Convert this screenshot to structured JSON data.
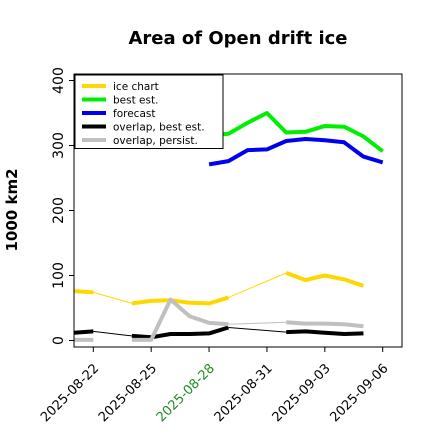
{
  "chart_data": {
    "type": "line",
    "title": "Area of Open drift ice",
    "ylabel": "1000 km2",
    "xlabel": "",
    "ylim": [
      -10,
      410
    ],
    "yticks": [
      0,
      100,
      200,
      300,
      400
    ],
    "x_tick_labels": [
      {
        "date": "2025-08-22",
        "color": "#000000"
      },
      {
        "date": "2025-08-25",
        "color": "#000000"
      },
      {
        "date": "2025-08-28",
        "color": "#228b22"
      },
      {
        "date": "2025-08-31",
        "color": "#000000"
      },
      {
        "date": "2025-09-03",
        "color": "#000000"
      },
      {
        "date": "2025-09-06",
        "color": "#000000"
      }
    ],
    "xlim": [
      "2025-08-21",
      "2025-09-07"
    ],
    "legend": {
      "placement": "top-left",
      "entries": [
        {
          "label": "ice chart",
          "color": "#ffd700"
        },
        {
          "label": "best est.",
          "color": "#00ee00"
        },
        {
          "label": "forecast",
          "color": "#0000ee"
        },
        {
          "label": "overlap, best est.",
          "color": "#000000"
        },
        {
          "label": "overlap, persist.",
          "color": "#c0c0c0"
        }
      ]
    },
    "series": [
      {
        "name": "ice chart",
        "color": "#ffd700",
        "segments": [
          [
            [
              "2025-08-21",
              76
            ],
            [
              "2025-08-22",
              74
            ]
          ],
          [
            [
              "2025-08-24",
              57
            ],
            [
              "2025-08-25",
              61
            ],
            [
              "2025-08-26",
              62
            ],
            [
              "2025-08-27",
              58
            ],
            [
              "2025-08-28",
              57
            ],
            [
              "2025-08-29",
              66
            ]
          ],
          [
            [
              "2025-09-01",
              104
            ],
            [
              "2025-09-02",
              93
            ],
            [
              "2025-09-03",
              100
            ],
            [
              "2025-09-04",
              94
            ],
            [
              "2025-09-05",
              84
            ]
          ]
        ]
      },
      {
        "name": "best est.",
        "color": "#00ee00",
        "segments": [
          [
            [
              "2025-08-28",
              315
            ],
            [
              "2025-08-29",
              318
            ],
            [
              "2025-08-30",
              335
            ],
            [
              "2025-08-31",
              350
            ],
            [
              "2025-09-01",
              320
            ],
            [
              "2025-09-02",
              321
            ],
            [
              "2025-09-03",
              330
            ],
            [
              "2025-09-04",
              329
            ],
            [
              "2025-09-05",
              314
            ],
            [
              "2025-09-06",
              291
            ]
          ]
        ]
      },
      {
        "name": "forecast",
        "color": "#0000ee",
        "segments": [
          [
            [
              "2025-08-28",
              271
            ],
            [
              "2025-08-29",
              276
            ],
            [
              "2025-08-30",
              293
            ],
            [
              "2025-08-31",
              294
            ],
            [
              "2025-09-01",
              307
            ],
            [
              "2025-09-02",
              310
            ],
            [
              "2025-09-03",
              308
            ],
            [
              "2025-09-04",
              305
            ],
            [
              "2025-09-05",
              283
            ],
            [
              "2025-09-06",
              274
            ]
          ]
        ]
      },
      {
        "name": "overlap, best est.",
        "color": "#000000",
        "segments": [
          [
            [
              "2025-08-21",
              12
            ],
            [
              "2025-08-22",
              14
            ]
          ],
          [
            [
              "2025-08-24",
              7
            ],
            [
              "2025-08-25",
              5
            ],
            [
              "2025-08-26",
              10
            ],
            [
              "2025-08-27",
              10
            ],
            [
              "2025-08-28",
              11
            ],
            [
              "2025-08-29",
              20
            ]
          ],
          [
            [
              "2025-09-01",
              13
            ],
            [
              "2025-09-02",
              14
            ],
            [
              "2025-09-03",
              12
            ],
            [
              "2025-09-04",
              10
            ],
            [
              "2025-09-05",
              11
            ]
          ]
        ]
      },
      {
        "name": "overlap, persist.",
        "color": "#c0c0c0",
        "segments": [
          [
            [
              "2025-08-21",
              1
            ],
            [
              "2025-08-22",
              1
            ]
          ],
          [
            [
              "2025-08-24",
              1
            ],
            [
              "2025-08-25",
              1
            ],
            [
              "2025-08-26",
              63
            ],
            [
              "2025-08-27",
              37
            ],
            [
              "2025-08-28",
              27
            ],
            [
              "2025-08-29",
              25
            ]
          ],
          [
            [
              "2025-09-01",
              28
            ],
            [
              "2025-09-02",
              26
            ],
            [
              "2025-09-03",
              26
            ],
            [
              "2025-09-04",
              25
            ],
            [
              "2025-09-05",
              22
            ]
          ]
        ]
      }
    ],
    "thin_connectors": [
      {
        "series": "ice chart",
        "color": "#ffd700",
        "points": [
          [
            "2025-08-22",
            74
          ],
          [
            "2025-08-24",
            57
          ]
        ]
      },
      {
        "series": "ice chart",
        "color": "#ffd700",
        "points": [
          [
            "2025-08-29",
            66
          ],
          [
            "2025-09-01",
            104
          ]
        ]
      },
      {
        "series": "overlap, best est.",
        "color": "#000000",
        "points": [
          [
            "2025-08-22",
            14
          ],
          [
            "2025-08-24",
            7
          ]
        ]
      },
      {
        "series": "overlap, best est.",
        "color": "#000000",
        "points": [
          [
            "2025-08-29",
            20
          ],
          [
            "2025-09-01",
            13
          ]
        ]
      },
      {
        "series": "overlap, persist.",
        "color": "#c0c0c0",
        "points": [
          [
            "2025-08-29",
            25
          ],
          [
            "2025-09-01",
            28
          ]
        ]
      }
    ],
    "grid": false
  }
}
